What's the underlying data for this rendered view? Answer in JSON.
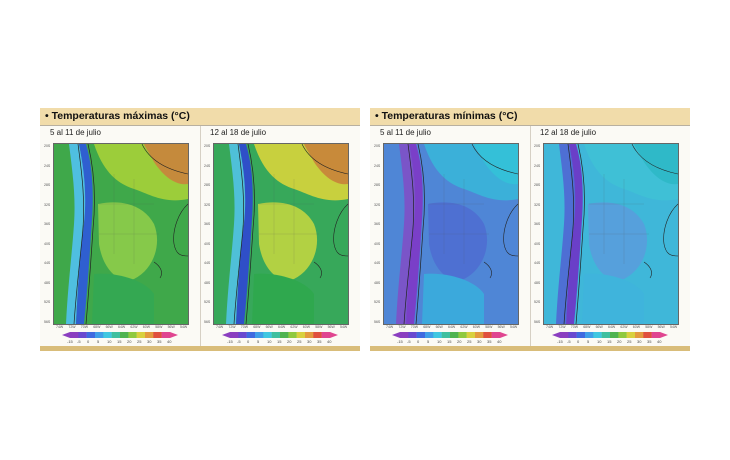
{
  "panels": [
    {
      "title": "• Temperaturas máximas (°C)",
      "maps": [
        {
          "period": "5 al 11 de julio",
          "colors": {
            "base": "#3fa84a",
            "north": "#9ccd3a",
            "ne": "#c58a3c",
            "andes": "#2f5fd0",
            "coast": "#4fbfe0",
            "mid": "#86c94a",
            "south": "#34a852"
          }
        },
        {
          "period": "12 al 18 de julio",
          "colors": {
            "base": "#37a85a",
            "north": "#c8d03e",
            "ne": "#c88a3a",
            "andes": "#2f4fc8",
            "coast": "#4fc0d8",
            "mid": "#b2d143",
            "south": "#2fa84e"
          }
        }
      ]
    },
    {
      "title": "• Temperaturas mínimas (°C)",
      "maps": [
        {
          "period": "5 al 11 de julio",
          "colors": {
            "base": "#4f86d6",
            "north": "#3bb0d9",
            "ne": "#34c0d8",
            "andes": "#7a3fc8",
            "coast": "#7a55c8",
            "mid": "#4e70d2",
            "south": "#3ba9dc"
          }
        },
        {
          "period": "12 al 18 de julio",
          "colors": {
            "base": "#3fb7d9",
            "north": "#3fc0d6",
            "ne": "#2fb9c8",
            "andes": "#6a3fc8",
            "coast": "#4e6fd4",
            "mid": "#56a0dc",
            "south": "#3fb4dc"
          }
        }
      ]
    }
  ],
  "latitudes": [
    "20S",
    "24S",
    "28S",
    "32S",
    "36S",
    "40S",
    "44S",
    "48S",
    "52S",
    "56S"
  ],
  "longitudes": [
    "74W",
    "72W",
    "70W",
    "68W",
    "66W",
    "64W",
    "62W",
    "60W",
    "58W",
    "56W",
    "54W"
  ],
  "colorbar": {
    "ticks": [
      "-15",
      "-5",
      "0",
      "5",
      "10",
      "15",
      "20",
      "25",
      "30",
      "35",
      "40"
    ],
    "colors": [
      "#8b3fc0",
      "#6a49d0",
      "#3f6be0",
      "#3f9fe8",
      "#3fc7e0",
      "#3fbf9f",
      "#4fb34f",
      "#8fc93f",
      "#d8d03f",
      "#e39a3f",
      "#e0503f",
      "#e04590"
    ]
  }
}
